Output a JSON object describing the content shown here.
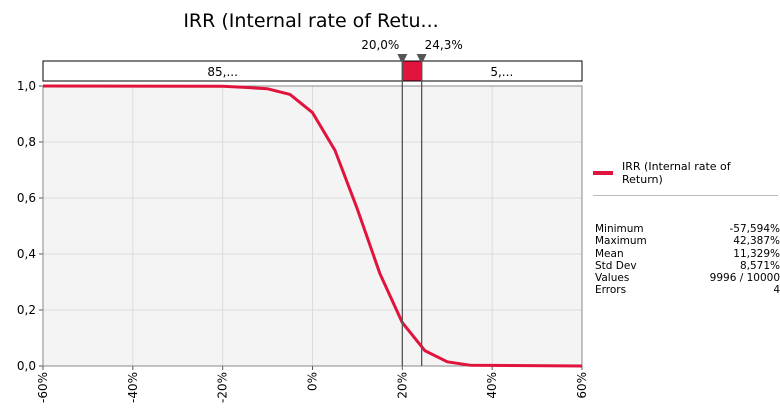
{
  "chart_data": {
    "type": "line",
    "title": "IRR (Internal rate of Retu...",
    "x": [
      -60,
      -20,
      -15,
      -10,
      -5,
      0,
      5,
      10,
      15,
      20,
      25,
      30,
      35,
      60
    ],
    "series": [
      {
        "name": "IRR (Internal rate of Return)",
        "color": "#e0143c",
        "values": [
          1,
          0.999,
          0.995,
          0.99,
          0.97,
          0.905,
          0.77,
          0.56,
          0.33,
          0.155,
          0.055,
          0.015,
          0.003,
          0
        ]
      }
    ],
    "xlim": [
      -60,
      60
    ],
    "xticks": [
      {
        "value": -60,
        "label": "-60%"
      },
      {
        "value": -40,
        "label": "-40%"
      },
      {
        "value": -20,
        "label": "-20%"
      },
      {
        "value": 0,
        "label": "0%"
      },
      {
        "value": 20,
        "label": "20%"
      },
      {
        "value": 40,
        "label": "40%"
      },
      {
        "value": 60,
        "label": "60%"
      }
    ],
    "ylim": [
      0,
      1
    ],
    "yticks": [
      {
        "value": 0,
        "label": "0,0"
      },
      {
        "value": 0.2,
        "label": "0,2"
      },
      {
        "value": 0.4,
        "label": "0,4"
      },
      {
        "value": 0.6,
        "label": "0,6"
      },
      {
        "value": 0.8,
        "label": "0,8"
      },
      {
        "value": 1,
        "label": "1,0"
      }
    ],
    "grid": true,
    "delimiters": [
      {
        "value": 20,
        "label": "20,0%"
      },
      {
        "value": 24.3,
        "label": "24,3%"
      }
    ],
    "band_left_label": "85,...",
    "band_right_label": "5,...",
    "band_middle_color": "#e0143c",
    "stats": [
      {
        "name": "Minimum",
        "value": "-57,594%"
      },
      {
        "name": "Maximum",
        "value": "42,387%"
      },
      {
        "name": "Mean",
        "value": "11,329%"
      },
      {
        "name": "Std Dev",
        "value": "8,571%"
      },
      {
        "name": "Values",
        "value": "9996 / 10000"
      },
      {
        "name": "Errors",
        "value": "4"
      }
    ]
  }
}
